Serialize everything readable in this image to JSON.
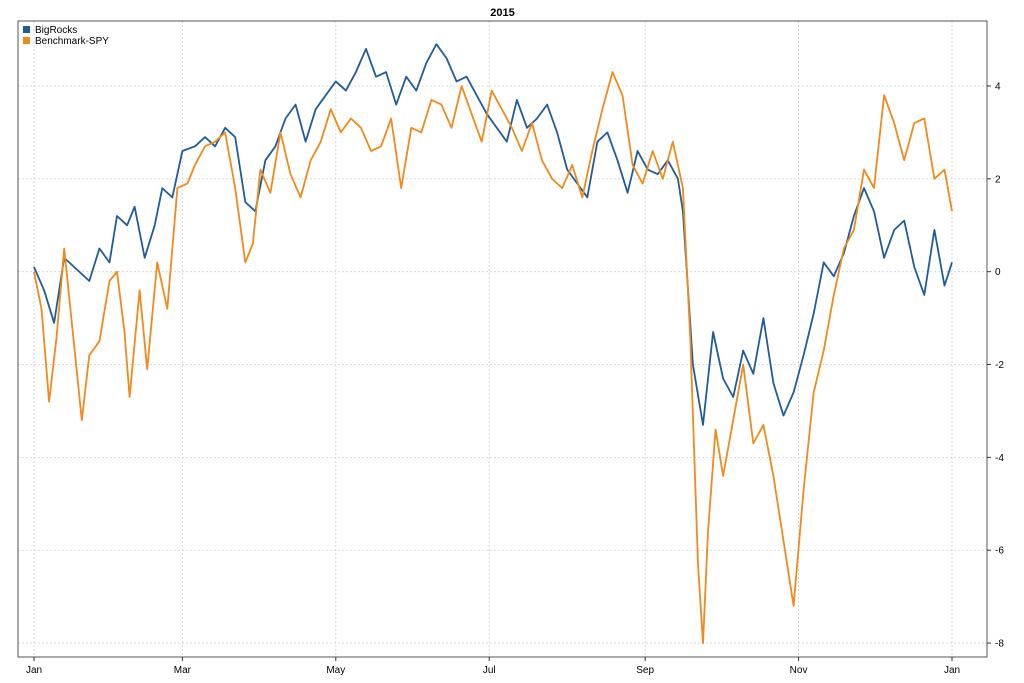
{
  "chart_data": {
    "type": "line",
    "title": "2015",
    "xlabel": "",
    "ylabel": "",
    "grid": true,
    "legend_position": "top-left",
    "x_ticks": [
      "Jan",
      "Mar",
      "May",
      "Jul",
      "Sep",
      "Nov",
      "Jan"
    ],
    "y_ticks": [
      4,
      2,
      0,
      -2,
      -4,
      -6,
      -8
    ],
    "ylim": [
      -8.3,
      5.4
    ],
    "xlim": [
      0,
      365
    ],
    "series": [
      {
        "name": "BigRocks",
        "color": "#1f5c99",
        "points": [
          [
            0,
            0.1
          ],
          [
            4,
            -0.4
          ],
          [
            8,
            -1.1
          ],
          [
            12,
            0.3
          ],
          [
            16,
            0.1
          ],
          [
            22,
            -0.2
          ],
          [
            26,
            0.5
          ],
          [
            30,
            0.2
          ],
          [
            33,
            1.2
          ],
          [
            37,
            1.0
          ],
          [
            40,
            1.4
          ],
          [
            44,
            0.3
          ],
          [
            48,
            1.0
          ],
          [
            51,
            1.8
          ],
          [
            55,
            1.6
          ],
          [
            59,
            2.6
          ],
          [
            64,
            2.7
          ],
          [
            68,
            2.9
          ],
          [
            72,
            2.7
          ],
          [
            76,
            3.1
          ],
          [
            80,
            2.9
          ],
          [
            84,
            1.5
          ],
          [
            88,
            1.3
          ],
          [
            92,
            2.4
          ],
          [
            96,
            2.7
          ],
          [
            100,
            3.3
          ],
          [
            104,
            3.6
          ],
          [
            108,
            2.8
          ],
          [
            112,
            3.5
          ],
          [
            116,
            3.8
          ],
          [
            120,
            4.1
          ],
          [
            124,
            3.9
          ],
          [
            128,
            4.3
          ],
          [
            132,
            4.8
          ],
          [
            136,
            4.2
          ],
          [
            140,
            4.3
          ],
          [
            144,
            3.6
          ],
          [
            148,
            4.2
          ],
          [
            152,
            3.9
          ],
          [
            156,
            4.5
          ],
          [
            160,
            4.9
          ],
          [
            164,
            4.6
          ],
          [
            168,
            4.1
          ],
          [
            172,
            4.2
          ],
          [
            176,
            3.8
          ],
          [
            180,
            3.4
          ],
          [
            184,
            3.1
          ],
          [
            188,
            2.8
          ],
          [
            192,
            3.7
          ],
          [
            196,
            3.1
          ],
          [
            200,
            3.3
          ],
          [
            204,
            3.6
          ],
          [
            208,
            3.0
          ],
          [
            212,
            2.2
          ],
          [
            216,
            1.9
          ],
          [
            220,
            1.6
          ],
          [
            224,
            2.8
          ],
          [
            228,
            3.0
          ],
          [
            232,
            2.4
          ],
          [
            236,
            1.7
          ],
          [
            240,
            2.6
          ],
          [
            244,
            2.2
          ],
          [
            248,
            2.1
          ],
          [
            252,
            2.4
          ],
          [
            256,
            2.0
          ],
          [
            258,
            1.3
          ],
          [
            262,
            -2.0
          ],
          [
            266,
            -3.3
          ],
          [
            270,
            -1.3
          ],
          [
            274,
            -2.3
          ],
          [
            278,
            -2.7
          ],
          [
            282,
            -1.7
          ],
          [
            286,
            -2.2
          ],
          [
            290,
            -1.0
          ],
          [
            294,
            -2.4
          ],
          [
            298,
            -3.1
          ],
          [
            302,
            -2.6
          ],
          [
            306,
            -1.8
          ],
          [
            310,
            -0.9
          ],
          [
            314,
            0.2
          ],
          [
            318,
            -0.1
          ],
          [
            322,
            0.4
          ],
          [
            326,
            1.2
          ],
          [
            330,
            1.8
          ],
          [
            334,
            1.3
          ],
          [
            338,
            0.3
          ],
          [
            342,
            0.9
          ],
          [
            346,
            1.1
          ],
          [
            350,
            0.1
          ],
          [
            354,
            -0.5
          ],
          [
            358,
            0.9
          ],
          [
            362,
            -0.3
          ],
          [
            365,
            0.2
          ]
        ]
      },
      {
        "name": "Benchmark-SPY",
        "color": "#f08a1a",
        "points": [
          [
            0,
            0.0
          ],
          [
            3,
            -0.8
          ],
          [
            6,
            -2.8
          ],
          [
            9,
            -1.4
          ],
          [
            12,
            0.5
          ],
          [
            16,
            -1.6
          ],
          [
            19,
            -3.2
          ],
          [
            22,
            -1.8
          ],
          [
            26,
            -1.5
          ],
          [
            30,
            -0.2
          ],
          [
            33,
            0.0
          ],
          [
            36,
            -1.3
          ],
          [
            38,
            -2.7
          ],
          [
            42,
            -0.4
          ],
          [
            45,
            -2.1
          ],
          [
            49,
            0.2
          ],
          [
            53,
            -0.8
          ],
          [
            57,
            1.8
          ],
          [
            61,
            1.9
          ],
          [
            64,
            2.3
          ],
          [
            68,
            2.7
          ],
          [
            72,
            2.8
          ],
          [
            76,
            3.0
          ],
          [
            80,
            1.8
          ],
          [
            84,
            0.2
          ],
          [
            87,
            0.6
          ],
          [
            90,
            2.2
          ],
          [
            94,
            1.7
          ],
          [
            98,
            3.0
          ],
          [
            102,
            2.1
          ],
          [
            106,
            1.6
          ],
          [
            110,
            2.4
          ],
          [
            114,
            2.8
          ],
          [
            118,
            3.5
          ],
          [
            122,
            3.0
          ],
          [
            126,
            3.3
          ],
          [
            130,
            3.1
          ],
          [
            134,
            2.6
          ],
          [
            138,
            2.7
          ],
          [
            142,
            3.3
          ],
          [
            146,
            1.8
          ],
          [
            150,
            3.1
          ],
          [
            154,
            3.0
          ],
          [
            158,
            3.7
          ],
          [
            162,
            3.6
          ],
          [
            166,
            3.1
          ],
          [
            170,
            4.0
          ],
          [
            174,
            3.4
          ],
          [
            178,
            2.8
          ],
          [
            182,
            3.9
          ],
          [
            186,
            3.5
          ],
          [
            190,
            3.1
          ],
          [
            194,
            2.6
          ],
          [
            198,
            3.2
          ],
          [
            202,
            2.4
          ],
          [
            206,
            2.0
          ],
          [
            210,
            1.8
          ],
          [
            214,
            2.3
          ],
          [
            218,
            1.6
          ],
          [
            222,
            2.6
          ],
          [
            226,
            3.5
          ],
          [
            230,
            4.3
          ],
          [
            234,
            3.8
          ],
          [
            238,
            2.3
          ],
          [
            242,
            1.9
          ],
          [
            246,
            2.6
          ],
          [
            250,
            2.0
          ],
          [
            254,
            2.8
          ],
          [
            258,
            1.8
          ],
          [
            261,
            -1.5
          ],
          [
            264,
            -6.3
          ],
          [
            266,
            -8.0
          ],
          [
            268,
            -5.6
          ],
          [
            271,
            -3.4
          ],
          [
            274,
            -4.4
          ],
          [
            278,
            -3.2
          ],
          [
            282,
            -2.0
          ],
          [
            286,
            -3.7
          ],
          [
            290,
            -3.3
          ],
          [
            294,
            -4.4
          ],
          [
            298,
            -5.8
          ],
          [
            302,
            -7.2
          ],
          [
            306,
            -4.7
          ],
          [
            310,
            -2.6
          ],
          [
            314,
            -1.7
          ],
          [
            318,
            -0.5
          ],
          [
            322,
            0.5
          ],
          [
            326,
            0.9
          ],
          [
            330,
            2.2
          ],
          [
            334,
            1.8
          ],
          [
            338,
            3.8
          ],
          [
            342,
            3.2
          ],
          [
            346,
            2.4
          ],
          [
            350,
            3.2
          ],
          [
            354,
            3.3
          ],
          [
            358,
            2.0
          ],
          [
            362,
            2.2
          ],
          [
            365,
            1.3
          ]
        ]
      }
    ]
  }
}
